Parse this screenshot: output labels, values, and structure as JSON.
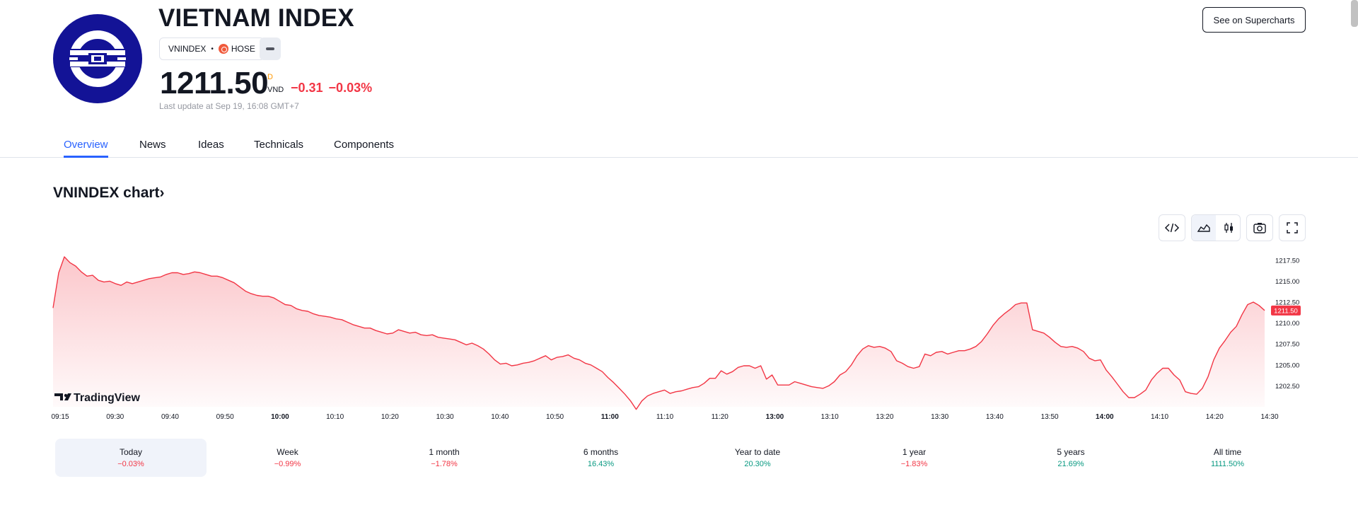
{
  "header": {
    "title": "VIETNAM INDEX",
    "symbol": "VNINDEX",
    "separator": "•",
    "exchange": "HOSE",
    "price": "1211.50",
    "price_flag": "D",
    "currency": "VND",
    "change_abs": "−0.31",
    "change_pct": "−0.03%",
    "last_update": "Last update at Sep 19, 16:08 GMT+7",
    "supercharts_label": "See on Supercharts"
  },
  "tabs": [
    {
      "label": "Overview",
      "active": true
    },
    {
      "label": "News"
    },
    {
      "label": "Ideas"
    },
    {
      "label": "Technicals"
    },
    {
      "label": "Components"
    }
  ],
  "chart_section": {
    "title": "VNINDEX chart",
    "title_chevron": "›",
    "watermark": "TradingView"
  },
  "colors": {
    "line": "#f23645",
    "accent": "#2962ff",
    "negative": "#f23645",
    "positive": "#089981"
  },
  "chart_data": {
    "type": "area",
    "x_ticks": [
      "09:15",
      "09:30",
      "09:40",
      "09:50",
      "10:00",
      "10:10",
      "10:20",
      "10:30",
      "10:40",
      "10:50",
      "11:00",
      "11:10",
      "11:20",
      "13:00",
      "13:10",
      "13:20",
      "13:30",
      "13:40",
      "13:50",
      "14:00",
      "14:10",
      "14:20",
      "14:30"
    ],
    "x_ticks_bold": [
      "10:00",
      "11:00",
      "13:00",
      "14:00"
    ],
    "y_ticks": [
      "1217.50",
      "1215.00",
      "1212.50",
      "1210.00",
      "1207.50",
      "1205.00",
      "1202.50"
    ],
    "ylim": [
      1200.0,
      1219.0
    ],
    "last_value_label": "1211.50",
    "series": [
      {
        "values": [
          1211.8,
          1216.0,
          1217.9,
          1217.2,
          1216.8,
          1216.1,
          1215.6,
          1215.7,
          1215.1,
          1214.9,
          1215.0,
          1214.7,
          1214.5,
          1214.9,
          1214.7,
          1214.9,
          1215.1,
          1215.3,
          1215.4,
          1215.5,
          1215.8,
          1216.0,
          1216.0,
          1215.8,
          1215.9,
          1216.1,
          1216.0,
          1215.8,
          1215.6,
          1215.6,
          1215.4,
          1215.1,
          1214.8,
          1214.3,
          1213.8,
          1213.5,
          1213.3,
          1213.2,
          1213.2,
          1213.0,
          1212.6,
          1212.2,
          1212.1,
          1211.7,
          1211.5,
          1211.4,
          1211.1,
          1210.9,
          1210.8,
          1210.7,
          1210.5,
          1210.4,
          1210.1,
          1209.8,
          1209.6,
          1209.4,
          1209.4,
          1209.1,
          1208.9,
          1208.7,
          1208.8,
          1209.2,
          1209.0,
          1208.8,
          1208.9,
          1208.6,
          1208.5,
          1208.6,
          1208.3,
          1208.2,
          1208.1,
          1208.0,
          1207.7,
          1207.4,
          1207.6,
          1207.3,
          1206.9,
          1206.3,
          1205.6,
          1205.1,
          1205.2,
          1204.9,
          1205.0,
          1205.2,
          1205.3,
          1205.5,
          1205.8,
          1206.1,
          1205.6,
          1205.9,
          1206.0,
          1206.2,
          1205.8,
          1205.6,
          1205.2,
          1205.0,
          1204.6,
          1204.2,
          1203.5,
          1202.9,
          1202.2,
          1201.5,
          1200.7,
          1199.7,
          1200.7,
          1201.3,
          1201.6,
          1201.8,
          1202.0,
          1201.6,
          1201.8,
          1201.9,
          1202.1,
          1202.3,
          1202.4,
          1202.8,
          1203.4,
          1203.4,
          1204.3,
          1203.9,
          1204.2,
          1204.7,
          1204.9,
          1204.9,
          1204.6,
          1204.9,
          1203.3,
          1203.8,
          1202.6,
          1202.6,
          1202.6,
          1203.0,
          1202.8,
          1202.6,
          1202.4,
          1202.3,
          1202.2,
          1202.5,
          1203.0,
          1203.8,
          1204.2,
          1205.0,
          1206.1,
          1206.9,
          1207.3,
          1207.1,
          1207.2,
          1207.0,
          1206.6,
          1205.5,
          1205.2,
          1204.8,
          1204.6,
          1204.8,
          1206.3,
          1206.1,
          1206.5,
          1206.6,
          1206.3,
          1206.5,
          1206.7,
          1206.7,
          1206.9,
          1207.2,
          1207.8,
          1208.7,
          1209.7,
          1210.5,
          1211.1,
          1211.6,
          1212.2,
          1212.4,
          1212.4,
          1209.2,
          1209.0,
          1208.8,
          1208.3,
          1207.7,
          1207.2,
          1207.1,
          1207.2,
          1207.0,
          1206.6,
          1205.8,
          1205.5,
          1205.6,
          1204.4,
          1203.6,
          1202.7,
          1201.8,
          1201.1,
          1201.1,
          1201.5,
          1202.0,
          1203.2,
          1204.0,
          1204.6,
          1204.6,
          1203.8,
          1203.2,
          1201.8,
          1201.6,
          1201.5,
          1202.2,
          1203.6,
          1205.6,
          1207.0,
          1207.9,
          1208.9,
          1209.6,
          1211.0,
          1212.2,
          1212.5,
          1212.1,
          1211.5
        ]
      }
    ],
    "grid": false
  },
  "toolbar": {
    "icons": [
      "embed-icon",
      "area-chart-icon",
      "candles-icon",
      "camera-icon",
      "fullscreen-icon"
    ]
  },
  "performance": [
    {
      "label": "Today",
      "value": "−0.03%",
      "sign": "neg",
      "active": true
    },
    {
      "label": "Week",
      "value": "−0.99%",
      "sign": "neg"
    },
    {
      "label": "1 month",
      "value": "−1.78%",
      "sign": "neg"
    },
    {
      "label": "6 months",
      "value": "16.43%",
      "sign": "pos"
    },
    {
      "label": "Year to date",
      "value": "20.30%",
      "sign": "pos"
    },
    {
      "label": "1 year",
      "value": "−1.83%",
      "sign": "neg"
    },
    {
      "label": "5 years",
      "value": "21.69%",
      "sign": "pos"
    },
    {
      "label": "All time",
      "value": "1111.50%",
      "sign": "pos"
    }
  ]
}
